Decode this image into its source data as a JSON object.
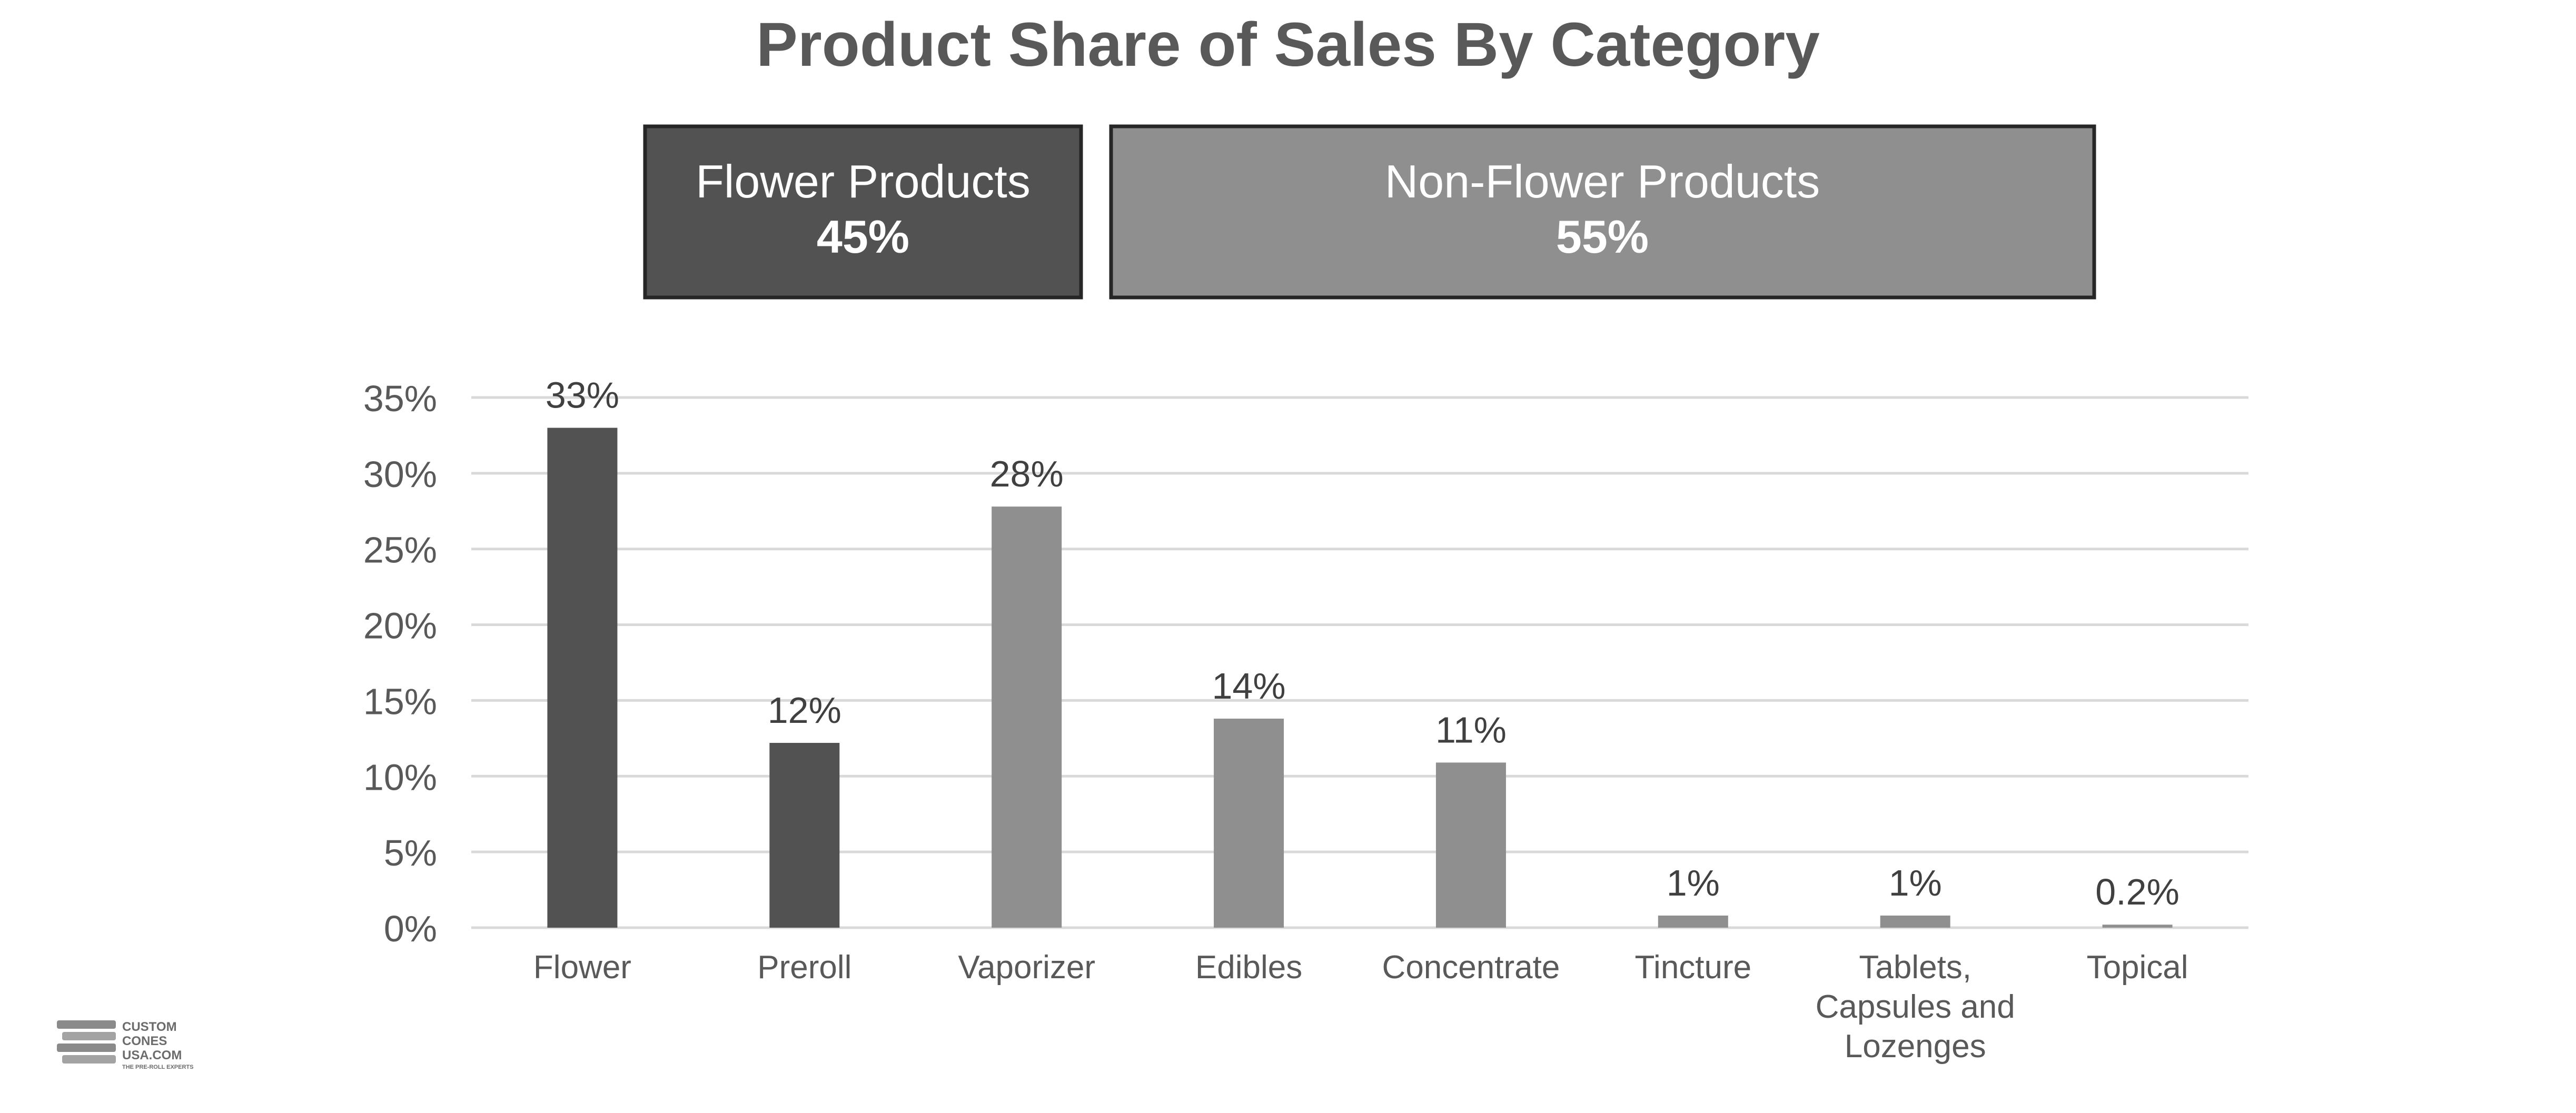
{
  "chart_data": {
    "type": "bar",
    "title": "Product Share of Sales By Category",
    "xlabel": "",
    "ylabel": "",
    "ylim": [
      0,
      35
    ],
    "y_ticks": [
      0,
      5,
      10,
      15,
      20,
      25,
      30,
      35
    ],
    "y_tick_labels": [
      "0%",
      "5%",
      "10%",
      "15%",
      "20%",
      "25%",
      "30%",
      "35%"
    ],
    "grid": true,
    "categories": [
      [
        "Flower"
      ],
      [
        "Preroll"
      ],
      [
        "Vaporizer"
      ],
      [
        "Edibles"
      ],
      [
        "Concentrate"
      ],
      [
        "Tincture"
      ],
      [
        "Tablets,",
        "Capsules and",
        "Lozenges"
      ],
      [
        "Topical"
      ]
    ],
    "values": [
      33,
      12.2,
      27.8,
      13.8,
      10.9,
      0.8,
      0.8,
      0.2
    ],
    "data_labels": [
      "33%",
      "12%",
      "28%",
      "14%",
      "11%",
      "1%",
      "1%",
      "0.2%"
    ],
    "bar_groups": [
      "flower",
      "flower",
      "non-flower",
      "non-flower",
      "non-flower",
      "non-flower",
      "non-flower",
      "non-flower"
    ],
    "groups": [
      {
        "key": "flower",
        "name": "Flower Products",
        "value_label": "45%",
        "color": "#525252"
      },
      {
        "key": "non-flower",
        "name": "Non-Flower Products",
        "value_label": "55%",
        "color": "#8f8f8f"
      }
    ],
    "colors": {
      "title": "#595959",
      "grid": "#d9d9d9",
      "box_border": "#262626"
    }
  },
  "logo": {
    "lines": [
      "CUSTOM",
      "CONES",
      "USA.COM"
    ],
    "tagline": "THE PRE-ROLL EXPERTS"
  }
}
